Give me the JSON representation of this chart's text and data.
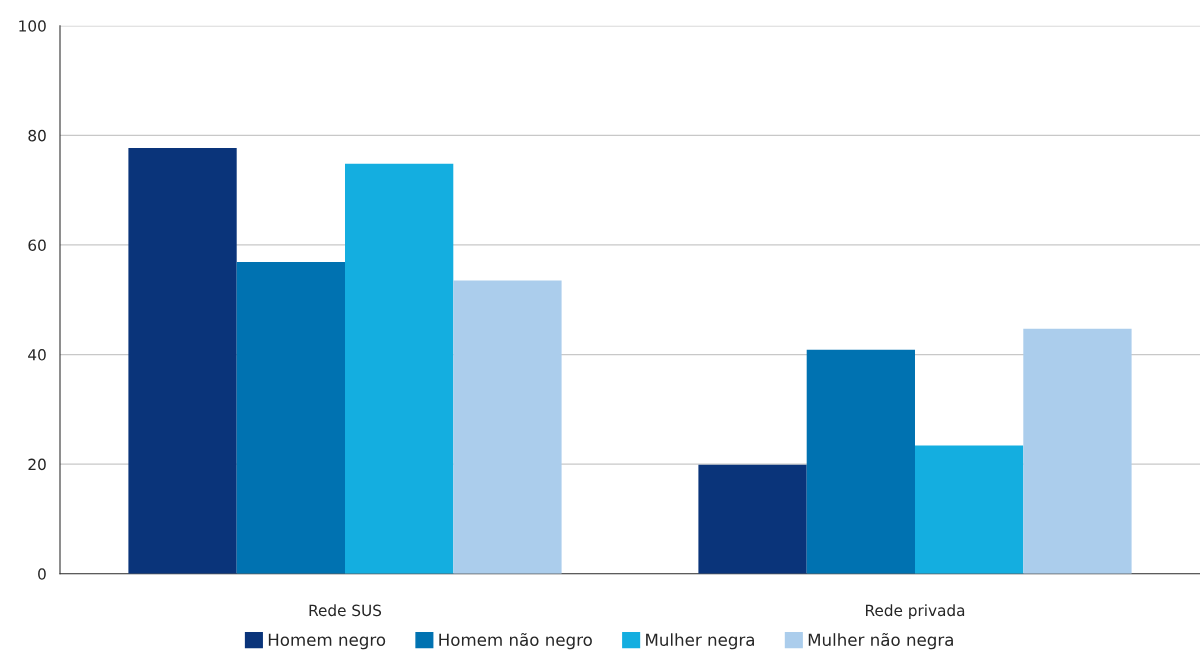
{
  "chart_data": {
    "type": "bar",
    "categories": [
      "Rede SUS",
      "Rede privada"
    ],
    "series": [
      {
        "name": "Homem negro",
        "color": "#0a347a",
        "values": [
          77.7,
          19.9
        ]
      },
      {
        "name": "Homem não negro",
        "color": "#0072b1",
        "values": [
          56.9,
          40.9
        ]
      },
      {
        "name": "Mulher negra",
        "color": "#14aee0",
        "values": [
          74.8,
          23.4
        ]
      },
      {
        "name": "Mulher não negra",
        "color": "#abcdec",
        "values": [
          53.5,
          44.7
        ]
      }
    ],
    "ylim": [
      0,
      100
    ],
    "yticks": [
      0,
      20,
      40,
      60,
      80,
      100
    ],
    "grid": "y",
    "legend": "bottom"
  }
}
